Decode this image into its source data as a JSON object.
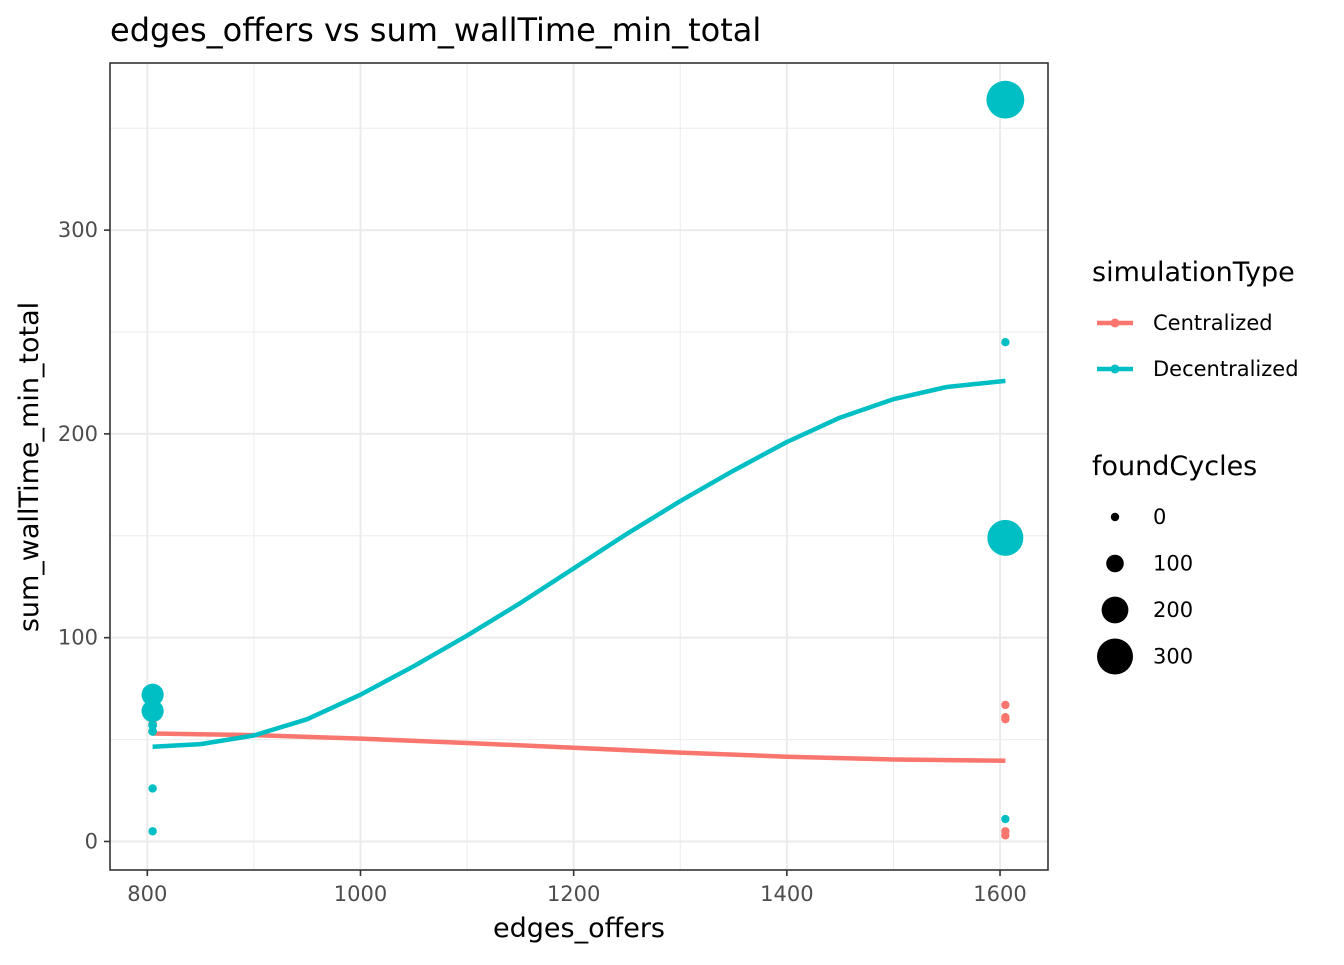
{
  "chart_data": {
    "type": "scatter",
    "title": "edges_offers  vs  sum_wallTime_min_total",
    "xlabel": "edges_offers",
    "ylabel": "sum_wallTime_min_total",
    "xlim": [
      765,
      1645
    ],
    "ylim": [
      -14,
      382
    ],
    "x_ticks": [
      800,
      1000,
      1200,
      1400,
      1600
    ],
    "y_ticks": [
      0,
      100,
      200,
      300
    ],
    "grid": true,
    "legend_placement": "right",
    "legend": {
      "color_title": "simulationType",
      "size_title": "foundCycles",
      "size_entries": [
        {
          "label": "0",
          "value": 0
        },
        {
          "label": "100",
          "value": 100
        },
        {
          "label": "200",
          "value": 200
        },
        {
          "label": "300",
          "value": 300
        }
      ]
    },
    "series": [
      {
        "name": "Centralized",
        "color": "#F8766D",
        "points": [
          {
            "x": 805,
            "y": 60,
            "size": 0
          },
          {
            "x": 805,
            "y": 58,
            "size": 0
          },
          {
            "x": 1605,
            "y": 67,
            "size": 0
          },
          {
            "x": 1605,
            "y": 61,
            "size": 0
          },
          {
            "x": 1605,
            "y": 60,
            "size": 0
          },
          {
            "x": 1605,
            "y": 5,
            "size": 0
          },
          {
            "x": 1605,
            "y": 3,
            "size": 0
          }
        ],
        "smooth": [
          {
            "x": 805,
            "y": 53
          },
          {
            "x": 900,
            "y": 52.2
          },
          {
            "x": 1000,
            "y": 50.5
          },
          {
            "x": 1100,
            "y": 48.3
          },
          {
            "x": 1200,
            "y": 46
          },
          {
            "x": 1300,
            "y": 43.6
          },
          {
            "x": 1400,
            "y": 41.6
          },
          {
            "x": 1500,
            "y": 40.2
          },
          {
            "x": 1605,
            "y": 39.6
          }
        ]
      },
      {
        "name": "Decentralized",
        "color": "#00BFC4",
        "points": [
          {
            "x": 805,
            "y": 72,
            "size": 150
          },
          {
            "x": 805,
            "y": 64,
            "size": 150
          },
          {
            "x": 805,
            "y": 57,
            "size": 5
          },
          {
            "x": 805,
            "y": 54,
            "size": 5
          },
          {
            "x": 805,
            "y": 26,
            "size": 0
          },
          {
            "x": 805,
            "y": 5,
            "size": 0
          },
          {
            "x": 1605,
            "y": 364,
            "size": 320
          },
          {
            "x": 1605,
            "y": 245,
            "size": 0
          },
          {
            "x": 1605,
            "y": 149,
            "size": 300
          },
          {
            "x": 1605,
            "y": 11,
            "size": 0
          }
        ],
        "smooth": [
          {
            "x": 805,
            "y": 46.5
          },
          {
            "x": 850,
            "y": 47.8
          },
          {
            "x": 900,
            "y": 52
          },
          {
            "x": 950,
            "y": 60
          },
          {
            "x": 1000,
            "y": 72
          },
          {
            "x": 1050,
            "y": 86
          },
          {
            "x": 1100,
            "y": 101
          },
          {
            "x": 1150,
            "y": 117
          },
          {
            "x": 1200,
            "y": 134
          },
          {
            "x": 1250,
            "y": 151
          },
          {
            "x": 1300,
            "y": 167
          },
          {
            "x": 1350,
            "y": 182
          },
          {
            "x": 1400,
            "y": 196
          },
          {
            "x": 1450,
            "y": 208
          },
          {
            "x": 1500,
            "y": 217
          },
          {
            "x": 1550,
            "y": 223
          },
          {
            "x": 1605,
            "y": 226
          }
        ]
      }
    ]
  }
}
